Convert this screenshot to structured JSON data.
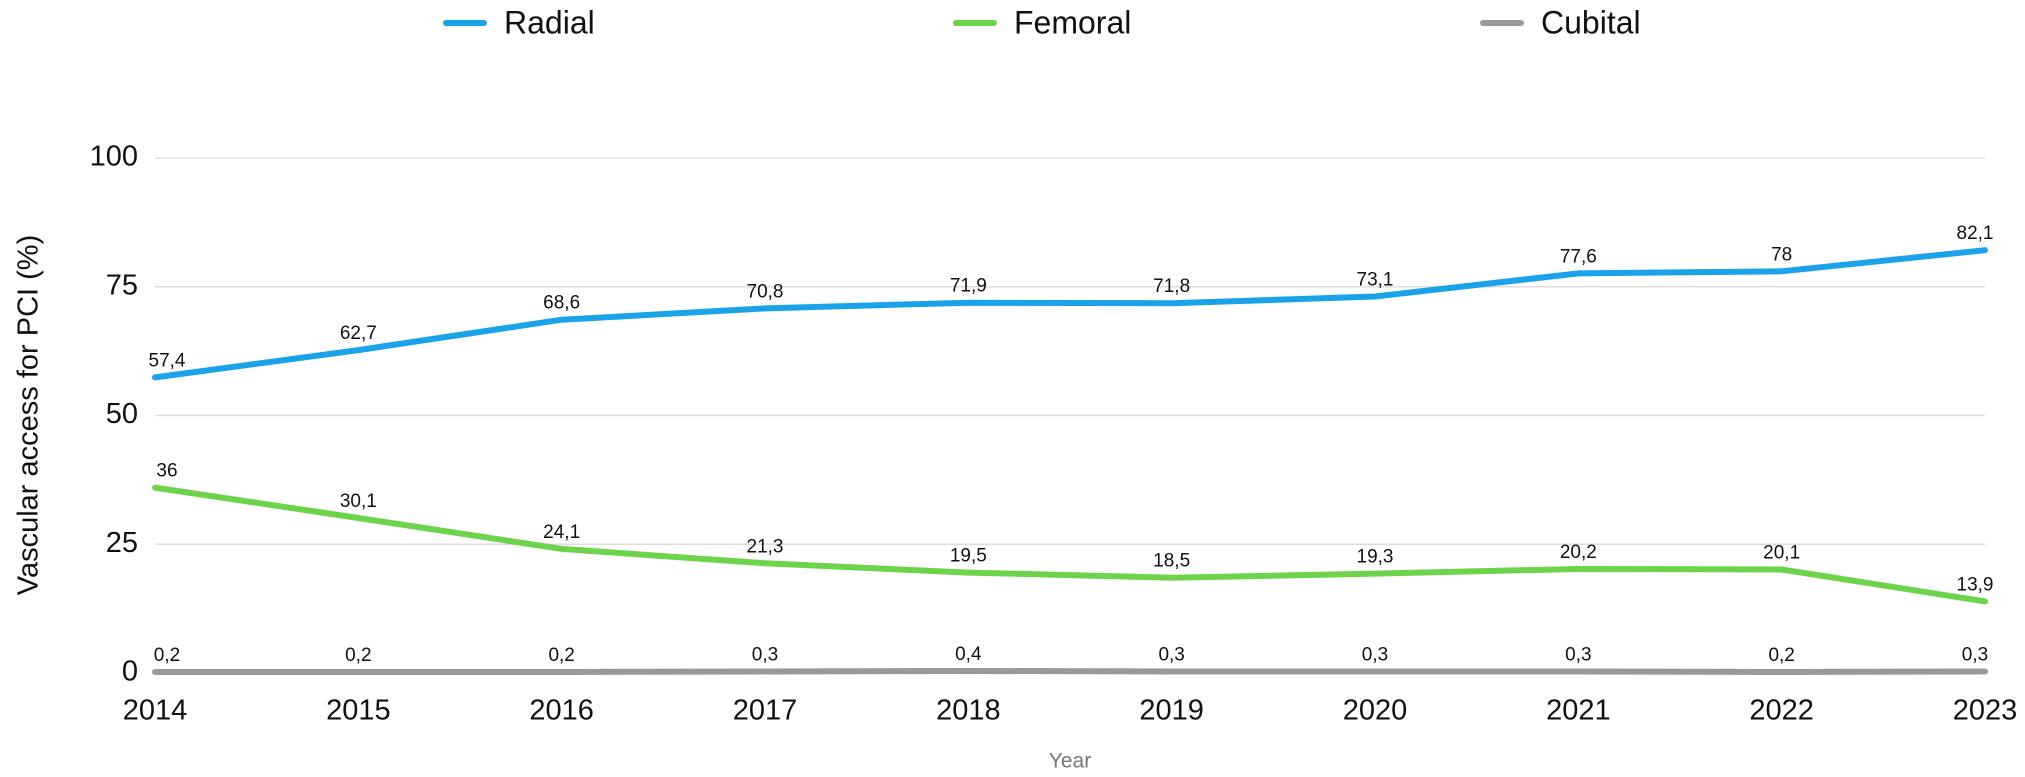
{
  "chart_data": {
    "type": "line",
    "x_label": "Year",
    "y_label": "Vascular access for PCI (%)",
    "categories": [
      "2014",
      "2015",
      "2016",
      "2017",
      "2018",
      "2019",
      "2020",
      "2021",
      "2022",
      "2023"
    ],
    "series": [
      {
        "name": "Radial",
        "color": "#1aa3e8",
        "values": [
          57.4,
          62.7,
          68.6,
          70.8,
          71.9,
          71.8,
          73.1,
          77.6,
          78,
          82.1
        ],
        "value_labels": [
          "57,4",
          "62,7",
          "68,6",
          "70,8",
          "71,9",
          "71,8",
          "73,1",
          "77,6",
          "78",
          "82,1"
        ]
      },
      {
        "name": "Femoral",
        "color": "#6cd34a",
        "values": [
          36,
          30.1,
          24.1,
          21.3,
          19.5,
          18.5,
          19.3,
          20.2,
          20.1,
          13.9
        ],
        "value_labels": [
          "36",
          "30,1",
          "24,1",
          "21,3",
          "19,5",
          "18,5",
          "19,3",
          "20,2",
          "20,1",
          "13,9"
        ]
      },
      {
        "name": "Cubital",
        "color": "#999999",
        "values": [
          0.2,
          0.2,
          0.2,
          0.3,
          0.4,
          0.3,
          0.3,
          0.3,
          0.2,
          0.3
        ],
        "value_labels": [
          "0,2",
          "0,2",
          "0,2",
          "0,3",
          "0,4",
          "0,3",
          "0,3",
          "0,3",
          "0,2",
          "0,3"
        ]
      }
    ],
    "ylim": [
      0,
      100
    ],
    "yticks": [
      0,
      25,
      50,
      75,
      100
    ],
    "grid": true
  }
}
